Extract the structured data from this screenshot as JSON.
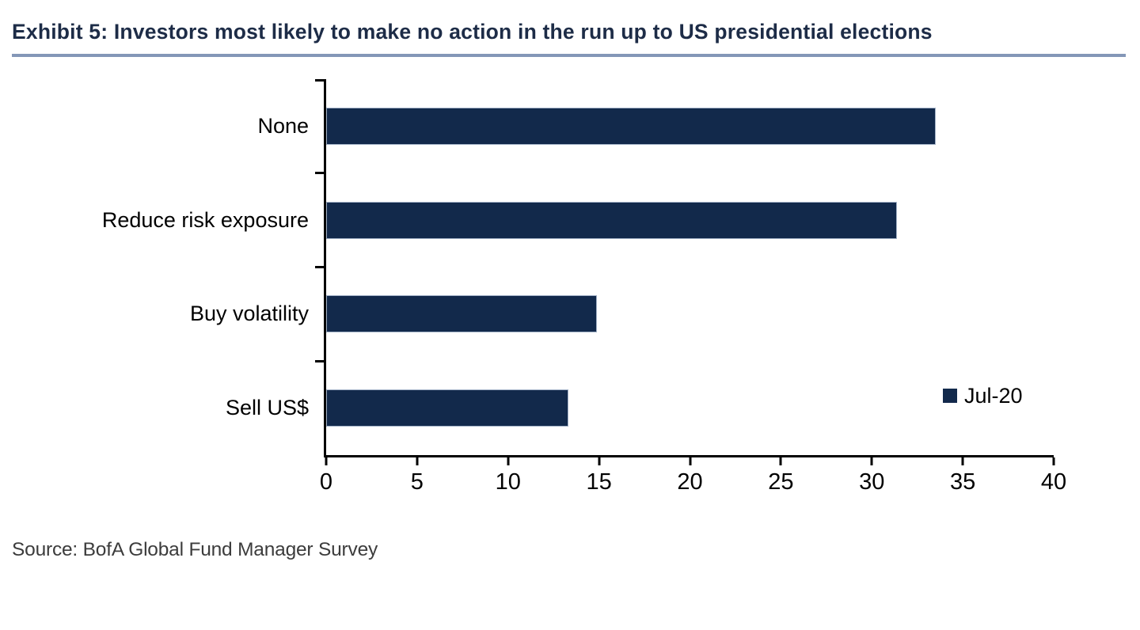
{
  "header": {
    "title": "Exhibit 5: Investors most likely to make no action in the run up to US presidential elections"
  },
  "chart_data": {
    "type": "bar",
    "orientation": "horizontal",
    "title": "Exhibit 5: Investors most likely to make no action in the run up to US presidential elections",
    "categories": [
      "None",
      "Reduce risk exposure",
      "Buy volatility",
      "Sell US$"
    ],
    "series": [
      {
        "name": "Jul-20",
        "values": [
          33.5,
          31.4,
          14.9,
          13.3
        ]
      }
    ],
    "xlabel": "",
    "ylabel": "",
    "xlim": [
      0,
      40
    ],
    "x_ticks": [
      0,
      5,
      10,
      15,
      20,
      25,
      30,
      35,
      40
    ],
    "grid": false,
    "legend_position": "right-middle",
    "bar_color": "#12294b",
    "bar_border_color": "#a3b2c7"
  },
  "legend": {
    "label": "Jul-20",
    "swatch_color": "#12294b"
  },
  "footer": {
    "source": "Source: BofA Global Fund Manager Survey"
  },
  "colors": {
    "title_text": "#1d2c47",
    "title_rule": "#8497b7",
    "axis": "#000000",
    "background": "#ffffff"
  }
}
